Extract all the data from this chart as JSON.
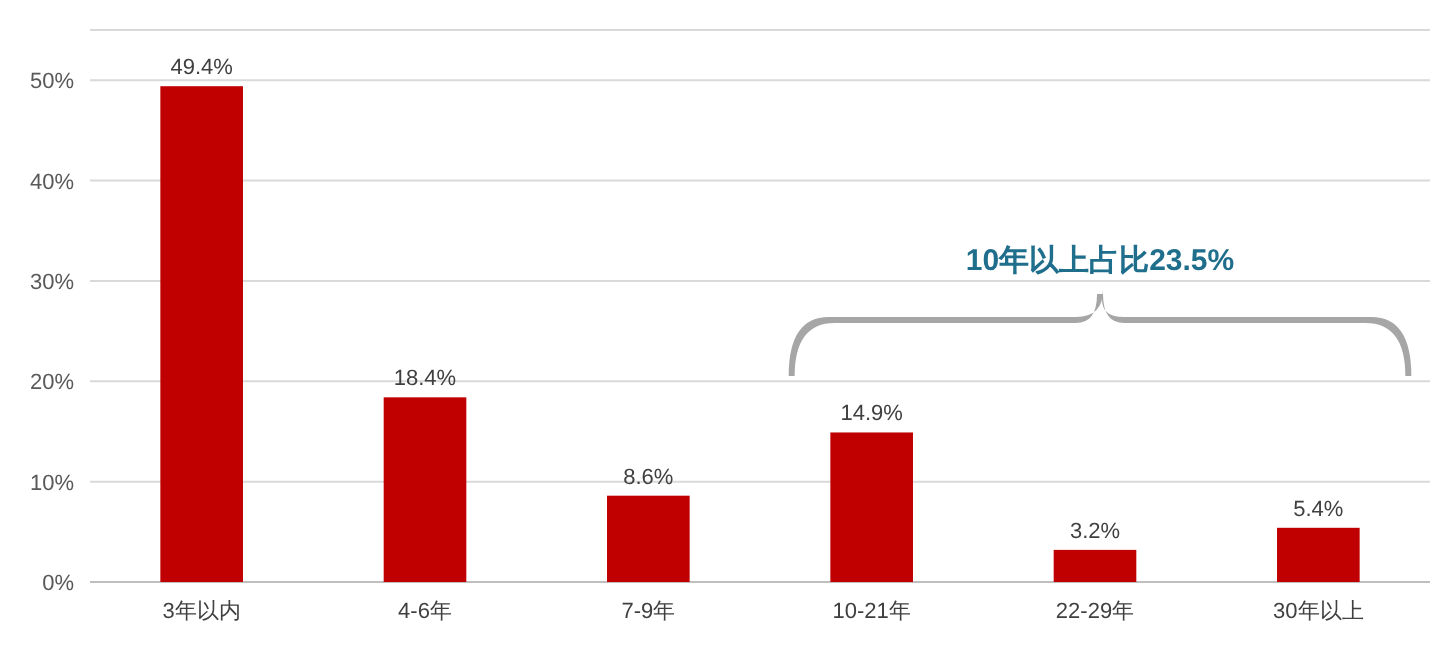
{
  "chart_data": {
    "type": "bar",
    "categories": [
      "3年以内",
      "4-6年",
      "7-9年",
      "10-21年",
      "22-29年",
      "30年以上"
    ],
    "values": [
      49.4,
      18.4,
      8.6,
      14.9,
      3.2,
      5.4
    ],
    "value_labels": [
      "49.4%",
      "18.4%",
      "8.6%",
      "14.9%",
      "3.2%",
      "5.4%"
    ],
    "color": "#c00000",
    "ylim": [
      0,
      55
    ],
    "yticks": [
      {
        "value": 0,
        "label": "0%"
      },
      {
        "value": 10,
        "label": "10%"
      },
      {
        "value": 20,
        "label": "20%"
      },
      {
        "value": 30,
        "label": "30%"
      },
      {
        "value": 40,
        "label": "40%"
      },
      {
        "value": 50,
        "label": "50%"
      }
    ],
    "grid": "y",
    "annotations": [
      "10年以上占比23.5%"
    ]
  }
}
